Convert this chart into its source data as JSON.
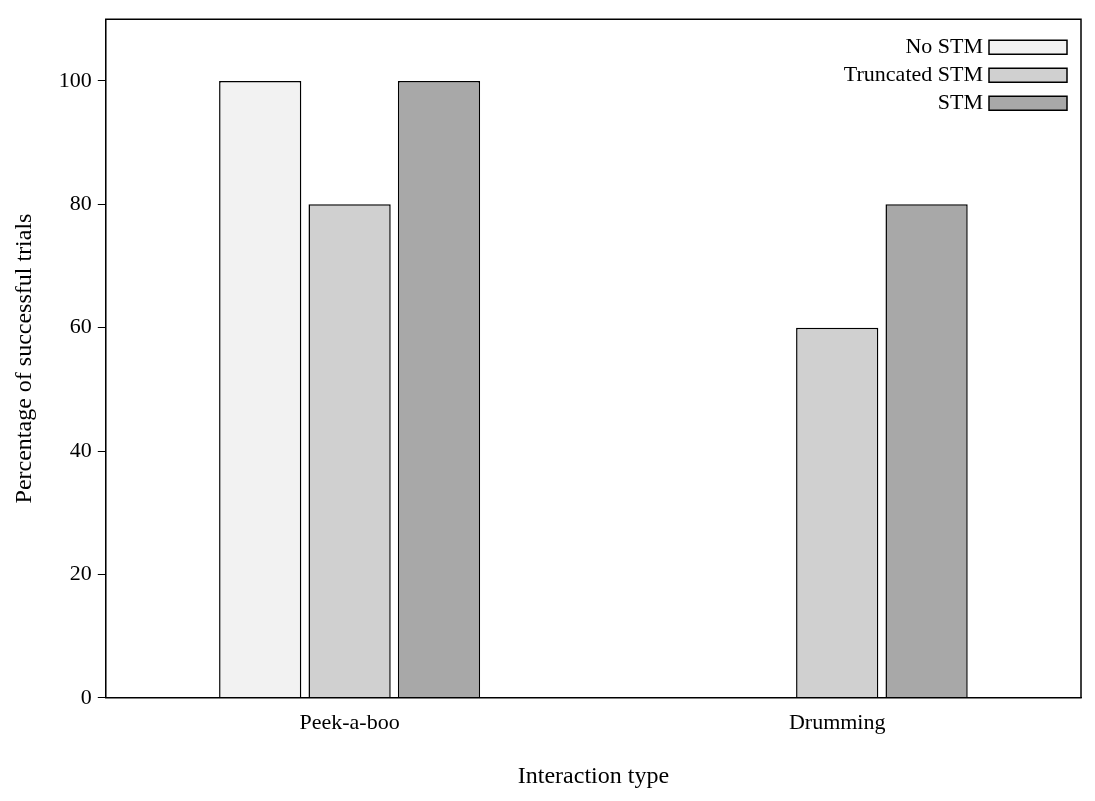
{
  "chart_data": {
    "type": "bar",
    "xlabel": "Interaction type",
    "ylabel": "Percentage of successful trials",
    "categories": [
      "Peek-a-boo",
      "Drumming"
    ],
    "series": [
      {
        "name": "No STM",
        "color": "#f2f2f2",
        "values": [
          100,
          0
        ]
      },
      {
        "name": "Truncated STM",
        "color": "#d0d0d0",
        "values": [
          80,
          60
        ]
      },
      {
        "name": "STM",
        "color": "#a8a8a8",
        "values": [
          100,
          80
        ]
      }
    ],
    "ylim": [
      0,
      110
    ],
    "yticks": [
      0,
      20,
      40,
      60,
      80,
      100
    ],
    "grid": false,
    "legend": "top right"
  }
}
